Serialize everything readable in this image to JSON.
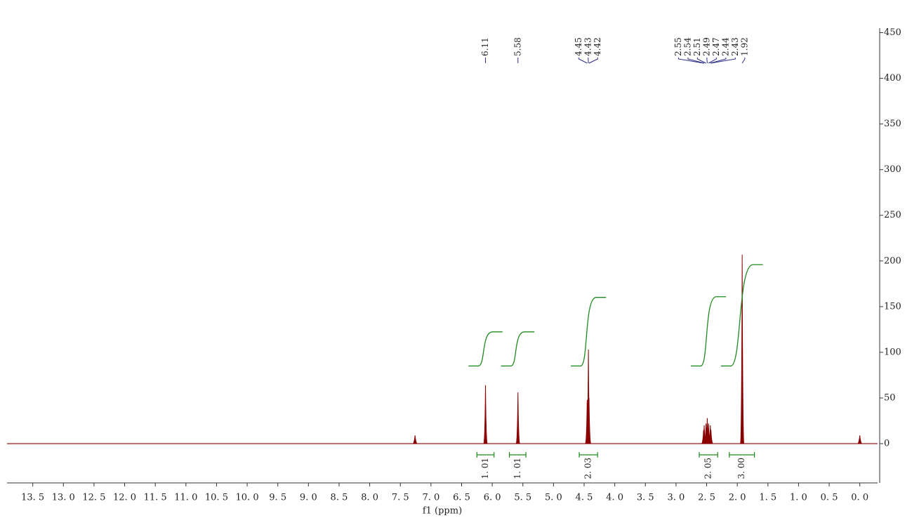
{
  "chart_data": {
    "type": "nmr",
    "x_label": "f1 (ppm)",
    "xlim": [
      13.92,
      -0.29
    ],
    "xticks": [
      {
        "value": 13.5,
        "label": "13. 5"
      },
      {
        "value": 13.0,
        "label": "13. 0"
      },
      {
        "value": 12.5,
        "label": "12. 5"
      },
      {
        "value": 12.0,
        "label": "12. 0"
      },
      {
        "value": 11.5,
        "label": "11. 5"
      },
      {
        "value": 11.0,
        "label": "11. 0"
      },
      {
        "value": 10.5,
        "label": "10. 5"
      },
      {
        "value": 10.0,
        "label": "10. 0"
      },
      {
        "value": 9.5,
        "label": "9. 5"
      },
      {
        "value": 9.0,
        "label": "9. 0"
      },
      {
        "value": 8.5,
        "label": "8. 5"
      },
      {
        "value": 8.0,
        "label": "8. 0"
      },
      {
        "value": 7.5,
        "label": "7. 5"
      },
      {
        "value": 7.0,
        "label": "7. 0"
      },
      {
        "value": 6.5,
        "label": "6. 5"
      },
      {
        "value": 6.0,
        "label": "6. 0"
      },
      {
        "value": 5.5,
        "label": "5. 5"
      },
      {
        "value": 5.0,
        "label": "5. 0"
      },
      {
        "value": 4.5,
        "label": "4. 5"
      },
      {
        "value": 4.0,
        "label": "4. 0"
      },
      {
        "value": 3.5,
        "label": "3. 5"
      },
      {
        "value": 3.0,
        "label": "3. 0"
      },
      {
        "value": 2.5,
        "label": "2. 5"
      },
      {
        "value": 2.0,
        "label": "2. 0"
      },
      {
        "value": 1.5,
        "label": "1. 5"
      },
      {
        "value": 1.0,
        "label": "1. 0"
      },
      {
        "value": 0.5,
        "label": "0. 5"
      },
      {
        "value": 0.0,
        "label": "0. 0"
      }
    ],
    "ylim": [
      -43,
      455
    ],
    "yticks": [
      0,
      50,
      100,
      150,
      200,
      250,
      300,
      350,
      400,
      450
    ],
    "color": "#8b0000",
    "peaks": {
      "x": [
        7.26,
        6.11,
        5.58,
        4.45,
        4.43,
        4.42,
        2.55,
        2.54,
        2.51,
        2.49,
        2.47,
        2.44,
        2.43,
        1.92,
        0.0
      ],
      "values": [
        9,
        64,
        56,
        48,
        103,
        50,
        15,
        20,
        22,
        28,
        22,
        20,
        15,
        207,
        9
      ]
    },
    "peak_labels": [
      6.11,
      5.58,
      4.45,
      4.43,
      4.42,
      2.55,
      2.54,
      2.51,
      2.49,
      2.47,
      2.44,
      2.43,
      1.92
    ],
    "peak_label_color": "#2b2b8c",
    "integral_color": "#1f8a1f",
    "integrals": {
      "ranges": [
        [
          6.25,
          5.97
        ],
        [
          5.72,
          5.45
        ],
        [
          4.58,
          4.28
        ],
        [
          2.62,
          2.32
        ],
        [
          2.13,
          1.72
        ]
      ],
      "values": [
        1.01,
        1.01,
        2.03,
        2.05,
        3.0
      ],
      "value_labels": [
        "1. 01",
        "1. 01",
        "2. 03",
        "2. 05",
        "3. 00"
      ]
    }
  }
}
